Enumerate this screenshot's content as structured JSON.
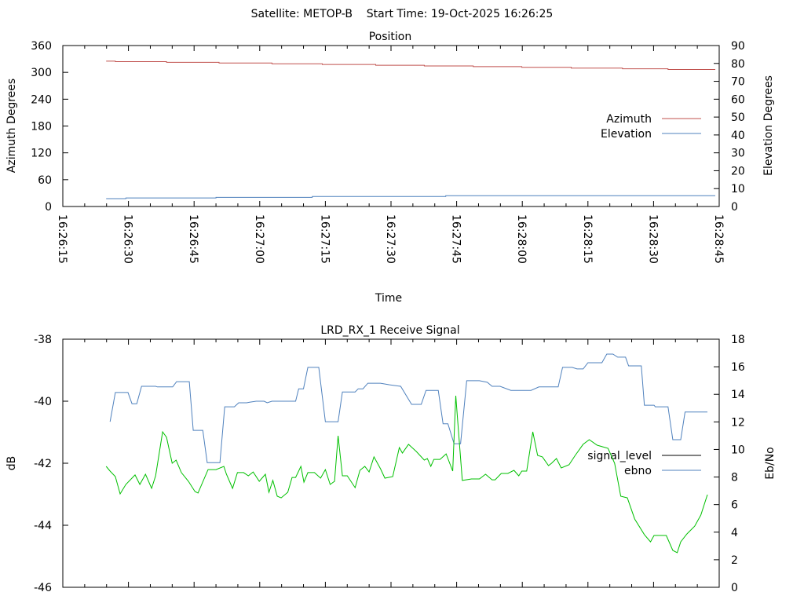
{
  "page_title": "Satellite: METOP-B    Start Time: 19-Oct-2025 16:26:25",
  "colors": {
    "azimuth": "#c0504d",
    "elevation": "#4f81bd",
    "signal_level_legend": "#000000",
    "ebno_legend": "#4f81bd",
    "blue_trace": "#4f81bd",
    "green_trace": "#00c000"
  },
  "chart_data": [
    {
      "type": "line",
      "title": "Position",
      "xlabel": "Time",
      "ylabel": "Azimuth Degrees",
      "y2label": "Elevation Degrees",
      "time_origin": "16:26:15",
      "xlim_seconds": [
        0,
        150
      ],
      "xticks": [
        "16:26:15",
        "16:26:30",
        "16:26:45",
        "16:27:00",
        "16:27:15",
        "16:27:30",
        "16:27:45",
        "16:28:00",
        "16:28:15",
        "16:28:30",
        "16:28:45"
      ],
      "ylim": [
        0,
        360
      ],
      "yticks": [
        "0",
        "60",
        "120",
        "180",
        "240",
        "300",
        "360"
      ],
      "y2lim": [
        0,
        90
      ],
      "y2ticks": [
        "0",
        "10",
        "20",
        "30",
        "40",
        "50",
        "60",
        "70",
        "80",
        "90"
      ],
      "legend": "right",
      "series": [
        {
          "name": "Azimuth",
          "axis": "y1",
          "step": true,
          "t": [
            9.9,
            12.0,
            23.7,
            35.7,
            47.8,
            59.3,
            71.5,
            82.6,
            93.8,
            104.9,
            116.2,
            127.9,
            138.3,
            149.1
          ],
          "values": [
            325,
            324,
            322.4,
            320.8,
            319.2,
            317.6,
            316,
            314.4,
            312.8,
            311.2,
            309.6,
            308,
            306.4,
            306.4
          ]
        },
        {
          "name": "Elevation",
          "axis": "y2",
          "step": true,
          "t": [
            9.9,
            14.4,
            35.0,
            57.0,
            87.5,
            149.1
          ],
          "values": [
            4.4,
            4.8,
            5.1,
            5.6,
            6.0,
            6.0
          ]
        }
      ]
    },
    {
      "type": "line",
      "title": "LRD_RX_1 Receive Signal",
      "ylabel": "dB",
      "y2label": "Eb/No",
      "time_origin": "16:26:15",
      "xlim_seconds": [
        0,
        150
      ],
      "ylim": [
        -46,
        -38
      ],
      "yticks": [
        "-46",
        "-44",
        "-42",
        "-40",
        "-38"
      ],
      "y2lim": [
        0,
        18
      ],
      "y2ticks": [
        "0",
        "2",
        "4",
        "6",
        "8",
        "10",
        "12",
        "14",
        "16",
        "18"
      ],
      "legend": "right",
      "legend_entries": [
        {
          "name": "signal_level",
          "color_key": "signal_level_legend"
        },
        {
          "name": "ebno",
          "color_key": "ebno_legend"
        }
      ],
      "series": [
        {
          "name": "blue trace (dB)",
          "axis": "y1",
          "color_key": "blue_trace",
          "t": [
            10.8,
            12.0,
            14.9,
            15.8,
            16.9,
            18.0,
            21.2,
            21.6,
            25.1,
            26.0,
            28.9,
            29.8,
            32.0,
            33.0,
            35.9,
            37.0,
            39.2,
            40.2,
            42.0,
            42.7,
            44.2,
            46.0,
            46.7,
            47.8,
            53.2,
            53.9,
            55.0,
            56.0,
            58.5,
            60.0,
            62.9,
            63.9,
            66.8,
            67.5,
            68.6,
            69.7,
            72.6,
            74.7,
            77.2,
            79.7,
            81.9,
            83.0,
            85.8,
            86.9,
            88.0,
            89.4,
            90.9,
            92.3,
            95.2,
            97.0,
            98.1,
            99.9,
            102.4,
            107.0,
            108.8,
            113.2,
            114.2,
            116.4,
            117.5,
            118.9,
            120.0,
            123.2,
            124.3,
            125.7,
            126.8,
            128.6,
            129.3,
            132.2,
            132.9,
            135.1,
            135.4,
            138.3,
            139.4,
            141.2,
            142.2,
            147.3
          ],
          "values": [
            -40.66,
            -39.72,
            -39.72,
            -40.08,
            -40.08,
            -39.52,
            -39.52,
            -39.54,
            -39.54,
            -39.37,
            -39.37,
            -40.94,
            -40.94,
            -41.98,
            -41.98,
            -40.18,
            -40.18,
            -40.05,
            -40.05,
            -40.03,
            -40.0,
            -40.0,
            -40.05,
            -40.0,
            -40.0,
            -39.6,
            -39.6,
            -38.91,
            -38.91,
            -40.66,
            -40.66,
            -39.7,
            -39.7,
            -39.6,
            -39.6,
            -39.42,
            -39.42,
            -39.47,
            -39.52,
            -40.1,
            -40.1,
            -39.65,
            -39.65,
            -40.73,
            -40.73,
            -41.37,
            -41.37,
            -39.34,
            -39.34,
            -39.39,
            -39.52,
            -39.52,
            -39.65,
            -39.65,
            -39.54,
            -39.54,
            -38.91,
            -38.91,
            -38.96,
            -38.96,
            -38.76,
            -38.76,
            -38.48,
            -38.48,
            -38.58,
            -38.58,
            -38.86,
            -38.86,
            -40.13,
            -40.13,
            -40.18,
            -40.18,
            -41.24,
            -41.24,
            -40.35,
            -40.35
          ]
        },
        {
          "name": "green trace (Eb/No)",
          "axis": "y2",
          "color_key": "green_trace",
          "t": [
            9.9,
            10.8,
            12.0,
            13.1,
            14.4,
            16.5,
            17.6,
            18.9,
            20.3,
            21.2,
            22.8,
            23.7,
            25.0,
            25.9,
            27.1,
            28.7,
            30.2,
            30.9,
            33.2,
            35.0,
            36.8,
            37.4,
            38.8,
            39.9,
            41.3,
            42.4,
            43.5,
            44.9,
            46.3,
            47.1,
            48.0,
            49.0,
            49.9,
            51.4,
            52.4,
            53.2,
            54.4,
            55.1,
            56.0,
            57.5,
            58.9,
            60.0,
            61.1,
            62.1,
            62.9,
            63.9,
            65.0,
            66.8,
            67.9,
            69.0,
            70.0,
            71.1,
            72.6,
            73.6,
            75.4,
            76.9,
            77.6,
            79.0,
            80.8,
            82.6,
            83.3,
            84.1,
            84.8,
            86.2,
            87.6,
            89.1,
            89.8,
            90.5,
            91.3,
            93.4,
            95.2,
            96.6,
            98.1,
            98.8,
            100.2,
            101.7,
            103.1,
            104.2,
            104.9,
            106.0,
            107.4,
            108.5,
            109.6,
            111.0,
            111.7,
            112.8,
            113.9,
            115.7,
            117.1,
            118.9,
            120.3,
            122.1,
            124.6,
            126.1,
            127.5,
            129.0,
            130.7,
            132.9,
            134.3,
            135.1,
            137.9,
            139.4,
            140.4,
            141.2,
            142.6,
            144.4,
            145.8,
            147.3
          ],
          "values": [
            8.77,
            8.43,
            8.03,
            6.78,
            7.46,
            8.15,
            7.46,
            8.2,
            7.18,
            8.09,
            11.28,
            10.88,
            9.0,
            9.23,
            8.32,
            7.69,
            6.95,
            6.84,
            8.54,
            8.54,
            8.77,
            8.2,
            7.18,
            8.32,
            8.32,
            8.09,
            8.37,
            7.69,
            8.2,
            6.89,
            7.75,
            6.61,
            6.49,
            6.89,
            7.97,
            7.97,
            8.77,
            7.63,
            8.32,
            8.32,
            7.92,
            8.54,
            7.46,
            7.69,
            10.99,
            8.09,
            8.09,
            7.23,
            8.49,
            8.77,
            8.37,
            9.46,
            8.6,
            7.92,
            8.03,
            10.14,
            9.74,
            10.37,
            9.85,
            9.23,
            9.34,
            8.77,
            9.28,
            9.28,
            9.68,
            8.43,
            13.9,
            10.99,
            7.75,
            7.86,
            7.86,
            8.2,
            7.8,
            7.8,
            8.26,
            8.26,
            8.49,
            8.09,
            8.43,
            8.43,
            11.28,
            9.57,
            9.46,
            8.83,
            9.0,
            9.34,
            8.66,
            8.89,
            9.57,
            10.37,
            10.71,
            10.31,
            10.08,
            9.0,
            6.61,
            6.49,
            4.95,
            3.82,
            3.3,
            3.76,
            3.76,
            2.68,
            2.51,
            3.3,
            3.87,
            4.44,
            5.24,
            6.72
          ]
        }
      ]
    }
  ]
}
